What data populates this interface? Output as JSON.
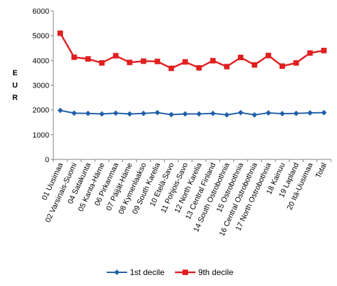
{
  "chart_data": {
    "type": "line",
    "title": "",
    "xlabel": "",
    "ylabel": "EUR",
    "ylim": [
      0,
      6000
    ],
    "yticks": [
      0,
      1000,
      2000,
      3000,
      4000,
      5000,
      6000
    ],
    "grid": false,
    "legend_position": "bottom",
    "categories": [
      "01 Uusimaa",
      "02 Varsinais-Suomi",
      "04 Satakunta",
      "05 Kanta-Häme",
      "06 Pirkanmaa",
      "07 Päijät-Häme",
      "08 Kymenlaakso",
      "09 South Karelia",
      "10 Etelä-Savo",
      "11 Pohjois-Savo",
      "12 North Karelia",
      "13 Central Finland",
      "14 South Ostrobothnia",
      "15 Ostrobothnia",
      "16 Central Ostrobothnia",
      "17 North Ostrobothnia",
      "18 Kainuu",
      "19 Lapland",
      "20 Itä-Uusimaa",
      "Total"
    ],
    "series": [
      {
        "name": "1st decile",
        "color": "#1f5fa8",
        "marker": "diamond",
        "values": [
          1980,
          1870,
          1860,
          1840,
          1870,
          1840,
          1860,
          1890,
          1810,
          1840,
          1840,
          1860,
          1800,
          1890,
          1800,
          1880,
          1850,
          1860,
          1880,
          1890
        ]
      },
      {
        "name": "9th decile",
        "color": "#e02020",
        "marker": "square",
        "values": [
          5100,
          4130,
          4060,
          3900,
          4190,
          3920,
          3970,
          3960,
          3680,
          3940,
          3700,
          3990,
          3750,
          4120,
          3820,
          4200,
          3770,
          3900,
          4300,
          4400
        ]
      }
    ]
  }
}
